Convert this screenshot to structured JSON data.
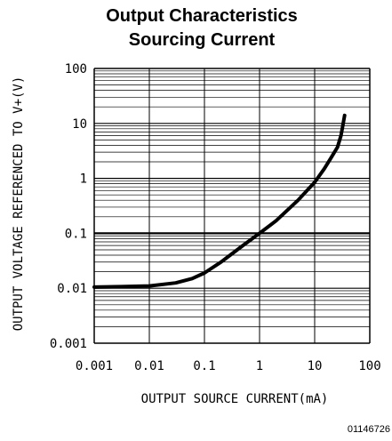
{
  "chart_data": {
    "type": "line",
    "title": "Output Characteristics",
    "subtitle": "Sourcing Current",
    "xlabel": "OUTPUT SOURCE CURRENT(mA)",
    "ylabel": "OUTPUT VOLTAGE REFERENCED TO V+(V)",
    "x_scale": "log",
    "y_scale": "log",
    "xlim": [
      0.001,
      100
    ],
    "ylim": [
      0.001,
      100
    ],
    "grid": true,
    "x_ticks": [
      "0.001",
      "0.01",
      "0.1",
      "1",
      "10",
      "100"
    ],
    "y_ticks": [
      "100",
      "10",
      "1",
      "0.1",
      "0.01",
      "0.001"
    ],
    "series": [
      {
        "x": [
          0.001,
          0.003,
          0.01,
          0.03,
          0.06,
          0.1,
          0.2,
          0.5,
          1,
          2,
          5,
          10,
          15,
          20,
          26,
          30,
          33,
          35
        ],
        "y": [
          0.0105,
          0.0107,
          0.011,
          0.0125,
          0.015,
          0.019,
          0.03,
          0.06,
          0.1,
          0.17,
          0.4,
          0.85,
          1.5,
          2.4,
          3.7,
          6,
          10,
          14
        ]
      }
    ]
  },
  "figure_id": "01146726",
  "colors": {
    "curve": "#000000",
    "grid": "#000000",
    "background": "#ffffff"
  }
}
